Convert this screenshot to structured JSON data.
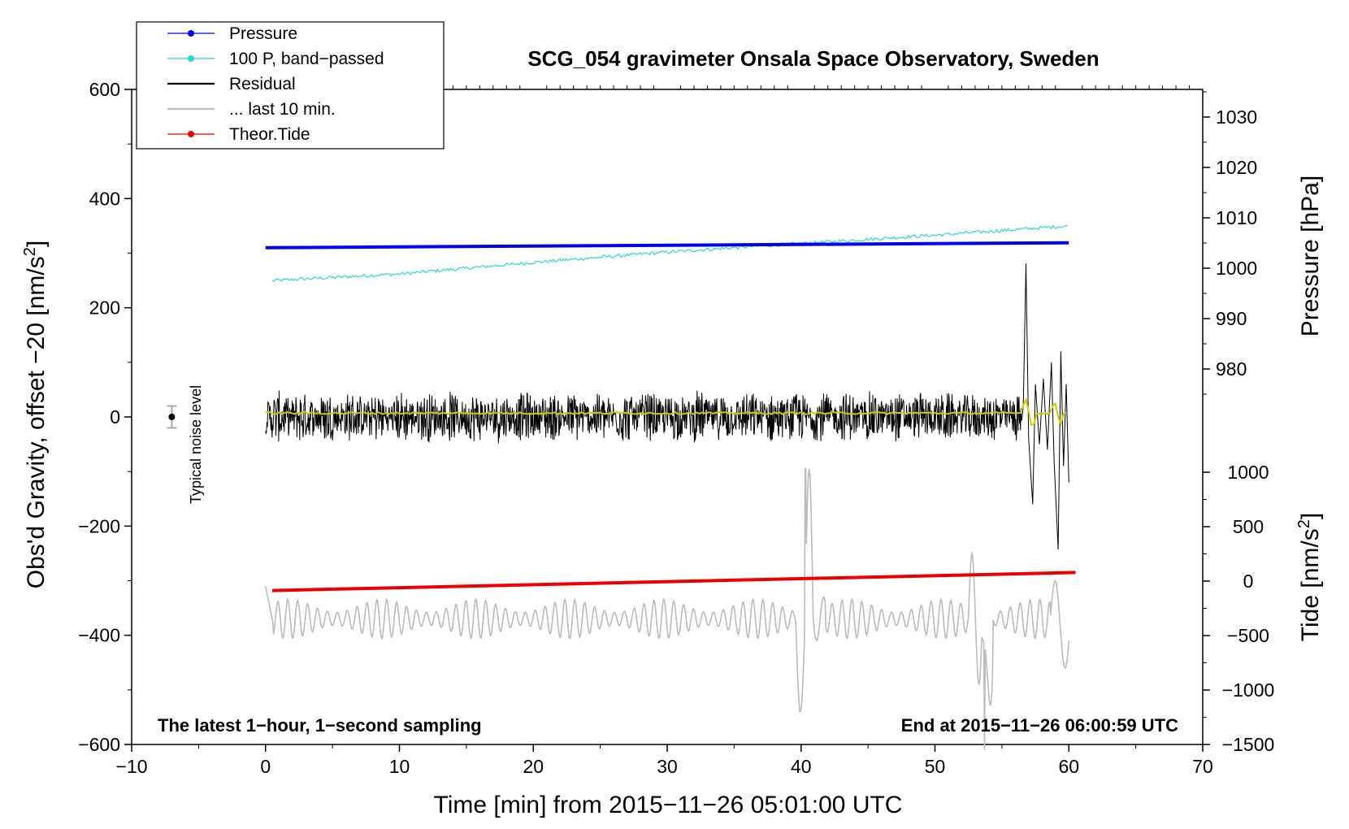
{
  "chart_data": {
    "type": "line",
    "title": "SCG_054 gravimeter Onsala Space Observatory, Sweden",
    "xlabel": "Time [min] from 2015−11−26 05:01:00 UTC",
    "ylabel": "Obs'd Gravity, offset −20 [nm/s",
    "ylabel_sup": "2",
    "ylabel_close": "]",
    "xlim": [
      -10,
      70
    ],
    "ylim": [
      -600,
      600
    ],
    "x_ticks": [
      -10,
      0,
      10,
      20,
      30,
      40,
      50,
      60,
      70
    ],
    "x_tick_labels": [
      "−10",
      "0",
      "10",
      "20",
      "30",
      "40",
      "50",
      "60",
      "70"
    ],
    "y_ticks": [
      600,
      400,
      200,
      0,
      -200,
      -400,
      -600
    ],
    "y_tick_labels": [
      "600",
      "400",
      "200",
      "0",
      "−200",
      "−400",
      "−600"
    ],
    "pressure_axis": {
      "label": "Pressure [hPa]",
      "ticks": [
        1030,
        1020,
        1010,
        1000,
        990,
        980
      ],
      "tick_labels": [
        "1030",
        "1020",
        "1010",
        "1000",
        "990",
        "980"
      ]
    },
    "tide_axis": {
      "label": "Tide [nm/s",
      "label_sup": "2",
      "label_close": "]",
      "ticks": [
        1000,
        500,
        0,
        -500,
        -1000,
        -1500
      ],
      "tick_labels": [
        "1000",
        "500",
        "0",
        "−500",
        "−1000",
        "−1500"
      ]
    },
    "legend_position": "top-left",
    "legend": [
      {
        "label": "Pressure",
        "color": "#0000ee",
        "marker": true
      },
      {
        "label": "100 P, band−passed",
        "color": "#2ed3d3",
        "marker": true
      },
      {
        "label": "Residual",
        "color": "#000000",
        "marker": false
      },
      {
        "label": "... last 10 min.",
        "color": "#bbbbbb",
        "marker": false
      },
      {
        "label": "Theor.Tide",
        "color": "#ee0000",
        "marker": true
      }
    ],
    "series": [
      {
        "name": "Pressure",
        "color": "#0000ee",
        "x": [
          0,
          60
        ],
        "y": [
          310,
          319
        ]
      },
      {
        "name": "100 P, band−passed",
        "color": "#2ed3d3",
        "x": [
          0,
          10,
          20,
          30,
          40,
          50,
          60
        ],
        "y": [
          249,
          262,
          283,
          302,
          318,
          333,
          350
        ]
      },
      {
        "name": "Residual",
        "color": "#000000",
        "x": [
          0,
          56.8,
          57.3,
          59.2,
          60
        ],
        "y": [
          0,
          281,
          -160,
          -243,
          -120
        ]
      },
      {
        "name": "... last 10 min.",
        "color": "#bbbbbb",
        "x": [
          0,
          40.3,
          40.8,
          53.7,
          60
        ],
        "y": [
          -310,
          -95,
          -540,
          -610,
          -410
        ]
      },
      {
        "name": "Theor.Tide",
        "color": "#ee0000",
        "x": [
          0.5,
          60.5
        ],
        "y": [
          -318,
          -285
        ]
      }
    ],
    "smoothed_residual_color": "#cccc00",
    "noise_label": "Typical noise level",
    "noise_level": {
      "x": -7,
      "y": 0,
      "err": 20
    },
    "bottom_left_note": "The latest 1−hour, 1−second sampling",
    "bottom_right_note": "End at 2015−11−26 06:00:59 UTC",
    "grid": false
  }
}
